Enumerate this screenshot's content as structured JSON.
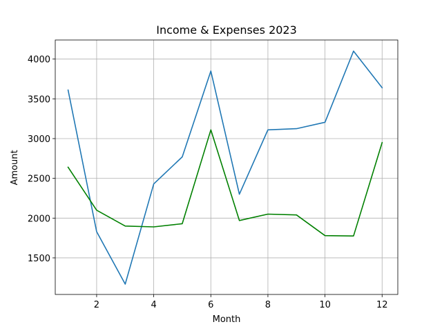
{
  "chart_data": {
    "type": "line",
    "title": "Income & Expenses 2023",
    "xlabel": "Month",
    "ylabel": "Amount",
    "x": [
      1,
      2,
      3,
      4,
      5,
      6,
      7,
      8,
      9,
      10,
      11,
      12
    ],
    "xlim": [
      0.55,
      12.55
    ],
    "ylim": [
      1040,
      4240
    ],
    "xticks": [
      2,
      4,
      6,
      8,
      10,
      12
    ],
    "yticks": [
      1500,
      2000,
      2500,
      3000,
      3500,
      4000
    ],
    "grid": true,
    "legend": "none",
    "series": [
      {
        "color": "#1f77b4",
        "values": [
          3610,
          1830,
          1170,
          2430,
          2770,
          3850,
          2300,
          3110,
          3125,
          3205,
          4100,
          3640
        ]
      },
      {
        "color": "#008000",
        "values": [
          2640,
          2100,
          1900,
          1890,
          1930,
          3110,
          1970,
          2050,
          2040,
          1780,
          1775,
          2950
        ]
      }
    ]
  }
}
